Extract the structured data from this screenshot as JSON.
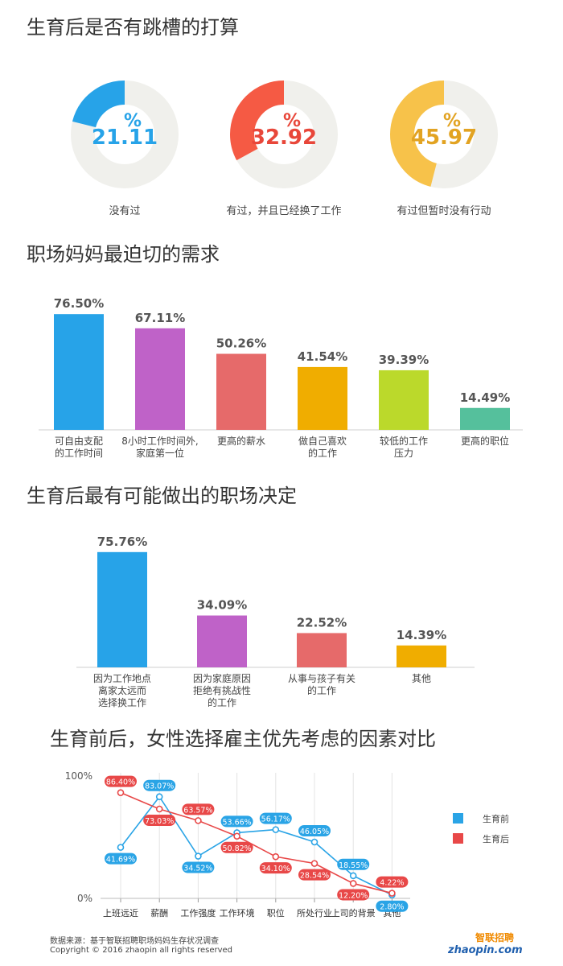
{
  "sections": {
    "donut_title": "生育后是否有跳槽的打算",
    "needs_title": "职场妈妈最迫切的需求",
    "decision_title": "生育后最有可能做出的职场决定",
    "compare_title": "生育前后，女性选择雇主优先考虑的因素对比"
  },
  "chart_data": [
    {
      "type": "pie",
      "title": "生育后是否有跳槽的打算",
      "unit": "%",
      "slices": [
        {
          "label": "没有过",
          "value": 21.11,
          "color": "#27a3e8"
        },
        {
          "label": "有过，并且已经换了工作",
          "value": 32.92,
          "color": "#f55a44"
        },
        {
          "label": "有过但暂时没有行动",
          "value": 45.97,
          "color": "#f7c24a"
        }
      ],
      "track_color": "#f0f0ec",
      "value_text_colors": [
        "#27a3e8",
        "#e8473a",
        "#e2a322"
      ]
    },
    {
      "type": "bar",
      "title": "职场妈妈最迫切的需求",
      "categories": [
        [
          "可自由支配",
          "的工作时间"
        ],
        [
          "8小时工作时间外,",
          "家庭第一位"
        ],
        [
          "更高的薪水"
        ],
        [
          "做自己喜欢",
          "的工作"
        ],
        [
          "较低的工作",
          "压力"
        ],
        [
          "更高的职位"
        ]
      ],
      "values": [
        76.5,
        67.11,
        50.26,
        41.54,
        39.39,
        14.49
      ],
      "labels": [
        "76.50%",
        "67.11%",
        "50.26%",
        "41.54%",
        "39.39%",
        "14.49%"
      ],
      "colors": [
        "#27a3e8",
        "#bf62c8",
        "#e66a6a",
        "#f0ad00",
        "#bbd92b",
        "#55c09c"
      ]
    },
    {
      "type": "bar",
      "title": "生育后最有可能做出的职场决定",
      "categories": [
        [
          "因为工作地点",
          "离家太远而",
          "选择换工作"
        ],
        [
          "因为家庭原因",
          "拒绝有挑战性",
          "的工作"
        ],
        [
          "从事与孩子有关",
          "的工作"
        ],
        [
          "其他"
        ]
      ],
      "values": [
        75.76,
        34.09,
        22.52,
        14.39
      ],
      "labels": [
        "75.76%",
        "34.09%",
        "22.52%",
        "14.39%"
      ],
      "colors": [
        "#27a3e8",
        "#bf62c8",
        "#e66a6a",
        "#f0ad00"
      ]
    },
    {
      "type": "line",
      "title": "生育前后，女性选择雇主优先考虑的因素对比",
      "categories": [
        "上班远近",
        "薪酬",
        "工作强度",
        "工作环境",
        "职位",
        "所处行业",
        "上司的背景",
        "其他"
      ],
      "y_ticks": [
        "100%",
        "0%"
      ],
      "ylim": [
        0,
        100
      ],
      "legend_position": "right",
      "series": [
        {
          "name": "生育前",
          "color": "#2aa4e6",
          "values": [
            41.69,
            83.07,
            34.52,
            53.66,
            56.17,
            46.05,
            18.55,
            2.8
          ],
          "labels": [
            "41.69%",
            "83.07%",
            "34.52%",
            "53.66%",
            "56.17%",
            "46.05%",
            "18.55%",
            "2.80%"
          ]
        },
        {
          "name": "生育后",
          "color": "#e84848",
          "values": [
            86.4,
            73.03,
            63.57,
            50.82,
            34.1,
            28.54,
            12.2,
            4.22
          ],
          "labels": [
            "86.40%",
            "73.03%",
            "63.57%",
            "50.82%",
            "34.10%",
            "28.54%",
            "12.20%",
            "4.22%"
          ]
        }
      ]
    }
  ],
  "footer": {
    "source": "数据来源：基于智联招聘职场妈妈生存状况调查",
    "copyright": "Copyright © 2016 zhaopin all rights reserved",
    "logo_cn": "智联招聘",
    "logo_en": "zhaopin.com",
    "logo_colors": {
      "orange": "#f08a00",
      "blue": "#1f5fae"
    }
  }
}
